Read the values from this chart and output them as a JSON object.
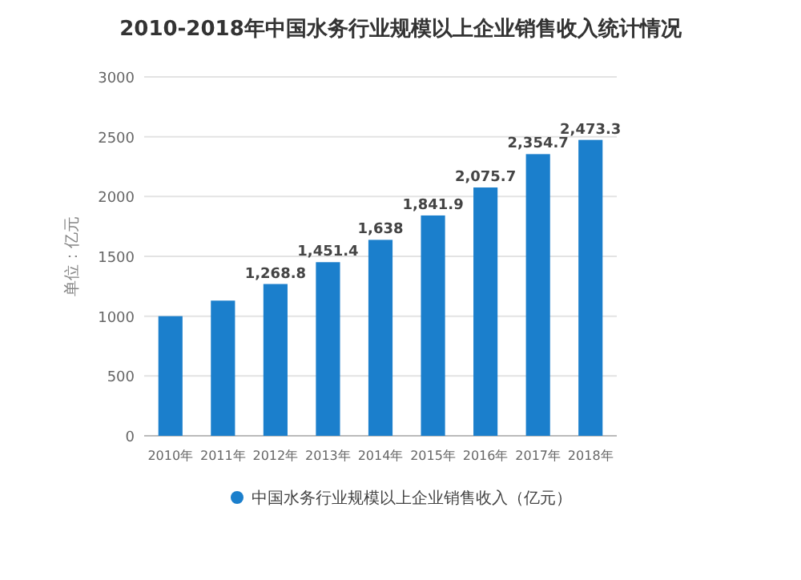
{
  "chart_data": {
    "type": "bar",
    "title": "2010-2018年中国水务行业规模以上企业销售收入统计情况",
    "ylabel": "单位：亿元",
    "categories": [
      "2010年",
      "2011年",
      "2012年",
      "2013年",
      "2014年",
      "2015年",
      "2016年",
      "2017年",
      "2018年"
    ],
    "series": [
      {
        "name": "中国水务行业规模以上企业销售收入（亿元）",
        "color": "#1b7fcc",
        "values": [
          1000,
          1130,
          1268.8,
          1451.4,
          1638,
          1841.9,
          2075.7,
          2354.7,
          2473.3
        ],
        "value_labels": [
          null,
          null,
          "1,268.8",
          "1,451.4",
          "1,638",
          "1,841.9",
          "2,075.7",
          "2,354.7",
          "2,473.3"
        ]
      }
    ],
    "ylim": [
      0,
      3000
    ],
    "yticks": [
      0,
      500,
      1000,
      1500,
      2000,
      2500,
      3000
    ],
    "grid": "y",
    "legend": "bottom"
  }
}
